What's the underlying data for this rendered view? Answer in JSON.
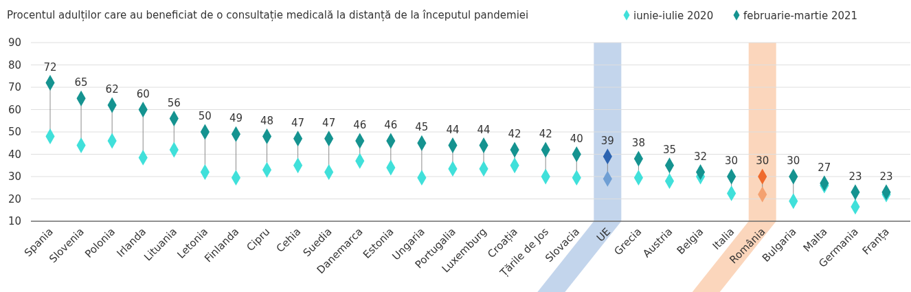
{
  "chart_data": {
    "type": "scatter",
    "title": "Procentul adulților care au beneficiat de o consultație medicală la distanță de la începutul pandemiei",
    "categories": [
      "Spania",
      "Slovenia",
      "Polonia",
      "Irlanda",
      "Lituania",
      "Letonia",
      "Finlanda",
      "Cipru",
      "Cehia",
      "Suedia",
      "Danemarca",
      "Estonia",
      "Ungaria",
      "Portugalia",
      "Luxemburg",
      "Croația",
      "Țările de Jos",
      "Slovacia",
      "UE",
      "Grecia",
      "Austria",
      "Belgia",
      "Italia",
      "România",
      "Bulgaria",
      "Malta",
      "Germania",
      "Franța"
    ],
    "series": [
      {
        "name": "iunie-iulie 2020",
        "color": "#40e0da",
        "colors": [
          "#40e0da",
          "#40e0da",
          "#40e0da",
          "#40e0da",
          "#40e0da",
          "#40e0da",
          "#40e0da",
          "#40e0da",
          "#40e0da",
          "#40e0da",
          "#40e0da",
          "#40e0da",
          "#40e0da",
          "#40e0da",
          "#40e0da",
          "#40e0da",
          "#40e0da",
          "#40e0da",
          "#6f9fd4",
          "#40e0da",
          "#40e0da",
          "#40e0da",
          "#40e0da",
          "#f4a170",
          "#40e0da",
          "#40e0da",
          "#40e0da",
          "#40e0da"
        ],
        "values": [
          48,
          44,
          46,
          38.5,
          42,
          32,
          29.5,
          33,
          35,
          32,
          37,
          34,
          29.5,
          33.5,
          33.5,
          35,
          30,
          29.5,
          29,
          29.5,
          28,
          30,
          22.5,
          22,
          19,
          26,
          16.5,
          22
        ]
      },
      {
        "name": "februarie-martie 2021",
        "color": "#159390",
        "colors": [
          "#159390",
          "#159390",
          "#159390",
          "#159390",
          "#159390",
          "#159390",
          "#159390",
          "#159390",
          "#159390",
          "#159390",
          "#159390",
          "#159390",
          "#159390",
          "#159390",
          "#159390",
          "#159390",
          "#159390",
          "#159390",
          "#2c63b0",
          "#159390",
          "#159390",
          "#159390",
          "#159390",
          "#ef6a2c",
          "#159390",
          "#159390",
          "#159390",
          "#159390"
        ],
        "values": [
          72,
          65,
          62,
          60,
          56,
          50,
          49,
          48,
          47,
          47,
          46,
          46,
          45,
          44,
          44,
          42,
          42,
          40,
          39,
          38,
          35,
          32,
          30,
          30,
          30,
          27,
          23,
          23
        ],
        "data_labels": true
      }
    ],
    "ylim": [
      10,
      90
    ],
    "yticks": [
      10,
      20,
      30,
      40,
      50,
      60,
      70,
      80,
      90
    ],
    "grid": "y",
    "legend": "top right",
    "marker": "diamond",
    "bands": [
      {
        "axis": "x",
        "from": "UE",
        "to": "UE",
        "color": "#c3d5ec"
      },
      {
        "axis": "x",
        "from": "România",
        "to": "România",
        "color": "#fbd6bc"
      }
    ]
  }
}
